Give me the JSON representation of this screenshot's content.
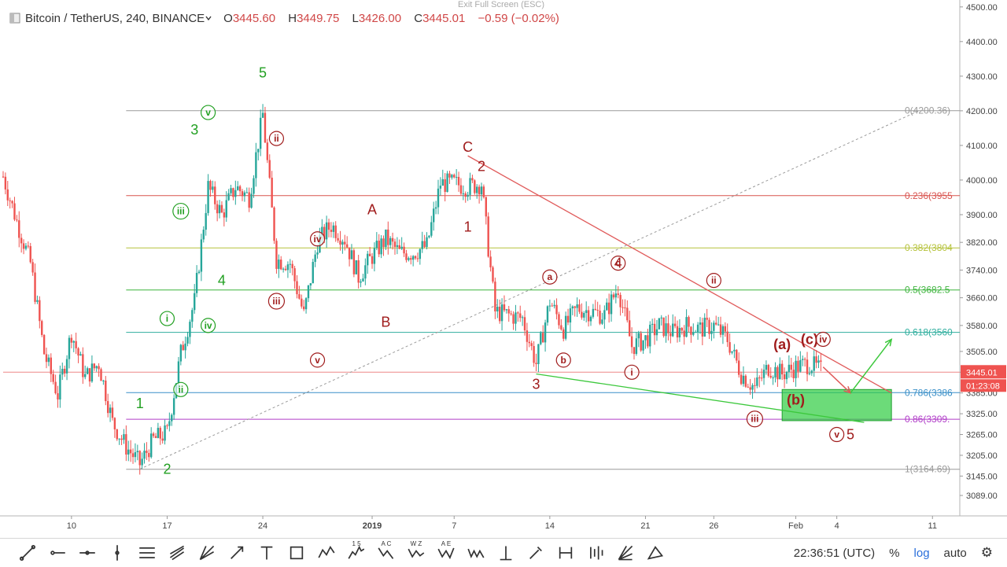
{
  "header": {
    "symbol_icon": "instrument-icon",
    "symbol": "Bitcoin / TetherUS, 240, BINANCE",
    "open_label": "O",
    "open": "3445.60",
    "high_label": "H",
    "high": "3449.75",
    "low_label": "L",
    "low": "3426.00",
    "close_label": "C",
    "close": "3445.01",
    "change": "−0.59 (−0.02%)",
    "exit_full_screen": "Exit Full Screen (ESC)"
  },
  "toolbar": {
    "tools": [
      "trend-line-icon",
      "horizontal-ray-icon",
      "horizontal-line-icon",
      "vertical-line-icon",
      "parallel-channel-icon",
      "pitchfork-icon",
      "gann-fan-icon",
      "arrow-icon",
      "text-icon",
      "rectangle-icon",
      "abcd-pattern-icon",
      "elliott-impulse-icon",
      "elliott-correction-icon",
      "elliott-triangle-icon",
      "elliott-double-combo-icon",
      "elliott-triple-combo-icon",
      "long-position-icon",
      "brush-icon",
      "date-range-icon",
      "bars-pattern-icon",
      "fib-speed-fan-icon",
      "triangle-pattern-icon"
    ],
    "wave_tool_labels": [
      "1 5",
      "A C",
      "W Z",
      "A E"
    ],
    "clock": "22:36:51 (UTC)",
    "percent": "%",
    "log": "log",
    "auto": "auto",
    "settings_icon": "gear-icon"
  },
  "chart_data": {
    "type": "candlestick",
    "y_axis": {
      "ylim": [
        3030,
        4520
      ],
      "tick_labels": [
        "4500.00",
        "4400.00",
        "4300.00",
        "4200.00",
        "4100.00",
        "4000.00",
        "3900.00",
        "3820.00",
        "3740.00",
        "3660.00",
        "3580.00",
        "3505.00",
        "3445.00",
        "3385.00",
        "3325.00",
        "3265.00",
        "3205.00",
        "3145.00",
        "3089.00"
      ],
      "tick_values": [
        4500,
        4400,
        4300,
        4200,
        4100,
        4000,
        3900,
        3820,
        3740,
        3660,
        3580,
        3505,
        3445,
        3385,
        3325,
        3265,
        3205,
        3145,
        3089
      ]
    },
    "x_axis": {
      "xlim": [
        "2018-12-05",
        "2019-02-13"
      ],
      "tick_labels": [
        "10",
        "17",
        "24",
        "2019",
        "7",
        "14",
        "21",
        "26",
        "Feb",
        "4",
        "11"
      ],
      "tick_dates": [
        "2018-12-10",
        "2018-12-17",
        "2018-12-24",
        "2019-01-01",
        "2019-01-07",
        "2019-01-14",
        "2019-01-21",
        "2019-01-26",
        "2019-02-01",
        "2019-02-04",
        "2019-02-11"
      ]
    },
    "last_price": "3445.01",
    "last_price_value": 3445.01,
    "countdown": "01:23:08",
    "price_path": [
      [
        "2018-12-05",
        4010
      ],
      [
        "2018-12-06",
        3880
      ],
      [
        "2018-12-07",
        3760
      ],
      [
        "2018-12-08",
        3500
      ],
      [
        "2018-12-09",
        3380
      ],
      [
        "2018-12-10",
        3560
      ],
      [
        "2018-12-11",
        3430
      ],
      [
        "2018-12-12",
        3470
      ],
      [
        "2018-12-13",
        3300
      ],
      [
        "2018-12-14",
        3230
      ],
      [
        "2018-12-15",
        3180
      ],
      [
        "2018-12-16",
        3250
      ],
      [
        "2018-12-17",
        3270
      ],
      [
        "2018-12-18",
        3500
      ],
      [
        "2018-12-19",
        3650
      ],
      [
        "2018-12-20",
        3980
      ],
      [
        "2018-12-21",
        3900
      ],
      [
        "2018-12-22",
        3980
      ],
      [
        "2018-12-23",
        3950
      ],
      [
        "2018-12-24",
        4190
      ],
      [
        "2018-12-25",
        3770
      ],
      [
        "2018-12-26",
        3760
      ],
      [
        "2018-12-27",
        3610
      ],
      [
        "2018-12-28",
        3820
      ],
      [
        "2018-12-29",
        3870
      ],
      [
        "2018-12-30",
        3830
      ],
      [
        "2018-12-31",
        3720
      ],
      [
        "2019-01-01",
        3780
      ],
      [
        "2019-01-02",
        3830
      ],
      [
        "2019-01-03",
        3790
      ],
      [
        "2019-01-04",
        3790
      ],
      [
        "2019-01-05",
        3810
      ],
      [
        "2019-01-06",
        3990
      ],
      [
        "2019-01-07",
        3990
      ],
      [
        "2019-01-08",
        3980
      ],
      [
        "2019-01-09",
        3990
      ],
      [
        "2019-01-10",
        3620
      ],
      [
        "2019-01-11",
        3610
      ],
      [
        "2019-01-12",
        3600
      ],
      [
        "2019-01-13",
        3470
      ],
      [
        "2019-01-14",
        3650
      ],
      [
        "2019-01-15",
        3570
      ],
      [
        "2019-01-16",
        3630
      ],
      [
        "2019-01-17",
        3620
      ],
      [
        "2019-01-18",
        3610
      ],
      [
        "2019-01-19",
        3690
      ],
      [
        "2019-01-20",
        3520
      ],
      [
        "2019-01-21",
        3540
      ],
      [
        "2019-01-22",
        3580
      ],
      [
        "2019-01-23",
        3560
      ],
      [
        "2019-01-24",
        3580
      ],
      [
        "2019-01-25",
        3570
      ],
      [
        "2019-01-26",
        3580
      ],
      [
        "2019-01-27",
        3540
      ],
      [
        "2019-01-28",
        3440
      ],
      [
        "2019-01-29",
        3400
      ],
      [
        "2019-01-30",
        3460
      ],
      [
        "2019-01-31",
        3440
      ],
      [
        "2019-02-01",
        3460
      ],
      [
        "2019-02-02",
        3470
      ],
      [
        "2019-02-03",
        3445
      ]
    ],
    "fib_levels": [
      {
        "label": "0(4200.36)",
        "value": 4200.36,
        "color": "#9a9a9a"
      },
      {
        "label": "0.236(3955",
        "value": 3955,
        "color": "#d9534f"
      },
      {
        "label": "0.382(3804",
        "value": 3804,
        "color": "#b5c23a"
      },
      {
        "label": "0.5(3682.5",
        "value": 3682.5,
        "color": "#3cb43c"
      },
      {
        "label": "0.618(3560",
        "value": 3560,
        "color": "#2fae9e"
      },
      {
        "label": "0.786(3386",
        "value": 3386,
        "color": "#3a8fc8"
      },
      {
        "label": "0.86(3309.",
        "value": 3309,
        "color": "#b03cc8"
      },
      {
        "label": "1(3164.69)",
        "value": 3164.69,
        "color": "#9a9a9a"
      }
    ],
    "fib_start_date": "2018-12-14",
    "wave_labels": [
      {
        "text": "5",
        "date": "2018-12-24",
        "price": 4310,
        "color": "#22a022",
        "circle": false
      },
      {
        "text": "3",
        "date": "2018-12-19",
        "price": 4145,
        "color": "#22a022",
        "circle": false
      },
      {
        "text": "v",
        "date": "2018-12-20",
        "price": 4195,
        "color": "#22a022",
        "circle": true
      },
      {
        "text": "iii",
        "date": "2018-12-18",
        "price": 3910,
        "color": "#22a022",
        "circle": true
      },
      {
        "text": "4",
        "date": "2018-12-21",
        "price": 3710,
        "color": "#22a022",
        "circle": false
      },
      {
        "text": "i",
        "date": "2018-12-17",
        "price": 3600,
        "color": "#22a022",
        "circle": true
      },
      {
        "text": "iv",
        "date": "2018-12-20",
        "price": 3580,
        "color": "#22a022",
        "circle": true
      },
      {
        "text": "1",
        "date": "2018-12-15",
        "price": 3355,
        "color": "#22a022",
        "circle": false
      },
      {
        "text": "ii",
        "date": "2018-12-18",
        "price": 3395,
        "color": "#22a022",
        "circle": true
      },
      {
        "text": "2",
        "date": "2018-12-17",
        "price": 3165,
        "color": "#22a022",
        "circle": false
      },
      {
        "text": "ii",
        "date": "2018-12-25",
        "price": 4120,
        "color": "#a01c1c",
        "circle": true
      },
      {
        "text": "iii",
        "date": "2018-12-25",
        "price": 3650,
        "color": "#a01c1c",
        "circle": true
      },
      {
        "text": "iv",
        "date": "2018-12-28",
        "price": 3830,
        "color": "#a01c1c",
        "circle": true
      },
      {
        "text": "v",
        "date": "2018-12-28",
        "price": 3480,
        "color": "#a01c1c",
        "circle": true
      },
      {
        "text": "A",
        "date": "2019-01-01",
        "price": 3915,
        "color": "#a01c1c",
        "circle": false
      },
      {
        "text": "B",
        "date": "2019-01-02",
        "price": 3590,
        "color": "#a01c1c",
        "circle": false
      },
      {
        "text": "C",
        "date": "2019-01-08",
        "price": 4095,
        "color": "#a01c1c",
        "circle": false
      },
      {
        "text": "2",
        "date": "2019-01-09",
        "price": 4040,
        "color": "#a01c1c",
        "circle": false
      },
      {
        "text": "1",
        "date": "2019-01-08",
        "price": 3865,
        "color": "#a01c1c",
        "circle": false
      },
      {
        "text": "3",
        "date": "2019-01-13",
        "price": 3410,
        "color": "#a01c1c",
        "circle": false
      },
      {
        "text": "a",
        "date": "2019-01-14",
        "price": 3720,
        "color": "#a01c1c",
        "circle": true
      },
      {
        "text": "b",
        "date": "2019-01-15",
        "price": 3480,
        "color": "#a01c1c",
        "circle": true
      },
      {
        "text": "c",
        "date": "2019-01-19",
        "price": 3760,
        "color": "#a01c1c",
        "circle": true
      },
      {
        "text": "4",
        "date": "2019-01-19",
        "price": 3760,
        "color": "#a01c1c",
        "circle": false
      },
      {
        "text": "i",
        "date": "2019-01-20",
        "price": 3445,
        "color": "#a01c1c",
        "circle": true
      },
      {
        "text": "ii",
        "date": "2019-01-26",
        "price": 3710,
        "color": "#a01c1c",
        "circle": true
      },
      {
        "text": "(a)",
        "date": "2019-01-31",
        "price": 3525,
        "color": "#a01c1c",
        "circle": false
      },
      {
        "text": "(b)",
        "date": "2019-02-01",
        "price": 3365,
        "color": "#a01c1c",
        "circle": false
      },
      {
        "text": "iii",
        "date": "2019-01-29",
        "price": 3310,
        "color": "#a01c1c",
        "circle": true
      },
      {
        "text": "(c)",
        "date": "2019-02-02",
        "price": 3540,
        "color": "#a01c1c",
        "circle": false
      },
      {
        "text": "iv",
        "date": "2019-02-03",
        "price": 3540,
        "color": "#a01c1c",
        "circle": true
      },
      {
        "text": "v",
        "date": "2019-02-04",
        "price": 3265,
        "color": "#a01c1c",
        "circle": true
      },
      {
        "text": "5",
        "date": "2019-02-05",
        "price": 3265,
        "color": "#a01c1c",
        "circle": false
      }
    ],
    "trend_lines": [
      {
        "from": [
          "2019-01-08",
          4070
        ],
        "to": [
          "2019-02-08",
          3385
        ],
        "color": "#e05a5a",
        "dashed": false
      },
      {
        "from": [
          "2019-01-13",
          3440
        ],
        "to": [
          "2019-02-06",
          3300
        ],
        "color": "#3cc83c",
        "dashed": false
      },
      {
        "from": [
          "2018-12-15",
          3165
        ],
        "to": [
          "2019-02-10",
          4200
        ],
        "color": "#9a9a9a",
        "dashed": true
      }
    ],
    "target_box": {
      "from_date": "2019-01-31",
      "to_date": "2019-02-08",
      "top": 3395,
      "bottom": 3305,
      "color": "#2ecc40"
    },
    "arrows": [
      {
        "from": [
          "2019-02-03",
          3460
        ],
        "to": [
          "2019-02-05",
          3385
        ],
        "color": "#e05a5a"
      },
      {
        "from": [
          "2019-02-05",
          3385
        ],
        "to": [
          "2019-02-08",
          3540
        ],
        "color": "#3cc83c"
      }
    ]
  }
}
